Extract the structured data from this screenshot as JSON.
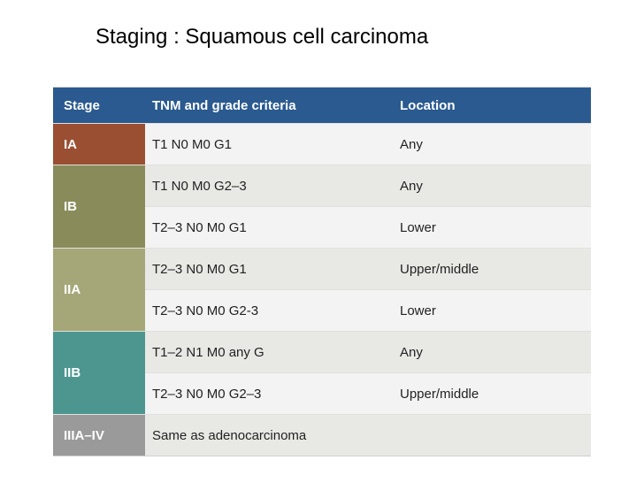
{
  "title": "Staging : Squamous cell carcinoma",
  "colors": {
    "header_bg": "#2a5a8f",
    "header_text": "#ffffff",
    "row_bg_a": "#f3f3f3",
    "row_bg_b": "#e8e8e5",
    "border": "#e0e0e0"
  },
  "header": {
    "stage": "Stage",
    "tnm": "TNM and grade criteria",
    "loc": "Location"
  },
  "groups": [
    {
      "stage": "IA",
      "stage_bg": "#9a4f33",
      "rows": [
        {
          "tnm": "T1 N0 M0 G1",
          "loc": "Any",
          "bg": "#f3f3f3"
        }
      ]
    },
    {
      "stage": "IB",
      "stage_bg": "#8a8b5a",
      "rows": [
        {
          "tnm": "T1 N0 M0 G2–3",
          "loc": "Any",
          "bg": "#e8e8e5"
        },
        {
          "tnm": "T2–3 N0 M0 G1",
          "loc": "Lower",
          "bg": "#f3f3f3"
        }
      ]
    },
    {
      "stage": "IIA",
      "stage_bg": "#a6a778",
      "rows": [
        {
          "tnm": "T2–3 N0 M0 G1",
          "loc": "Upper/middle",
          "bg": "#e8e8e5"
        },
        {
          "tnm": "T2–3 N0 M0 G2-3",
          "loc": "Lower",
          "bg": "#f3f3f3"
        }
      ]
    },
    {
      "stage": "IIB",
      "stage_bg": "#4d9690",
      "rows": [
        {
          "tnm": "T1–2 N1 M0 any G",
          "loc": "Any",
          "bg": "#e8e8e5"
        },
        {
          "tnm": "T2–3 N0 M0 G2–3",
          "loc": "Upper/middle",
          "bg": "#f3f3f3"
        }
      ]
    },
    {
      "stage": "IIIA–IV",
      "stage_bg": "#9a9a9a",
      "rows": [
        {
          "tnm": "Same as adenocarcinoma",
          "loc": "",
          "bg": "#e8e8e5"
        }
      ]
    }
  ]
}
